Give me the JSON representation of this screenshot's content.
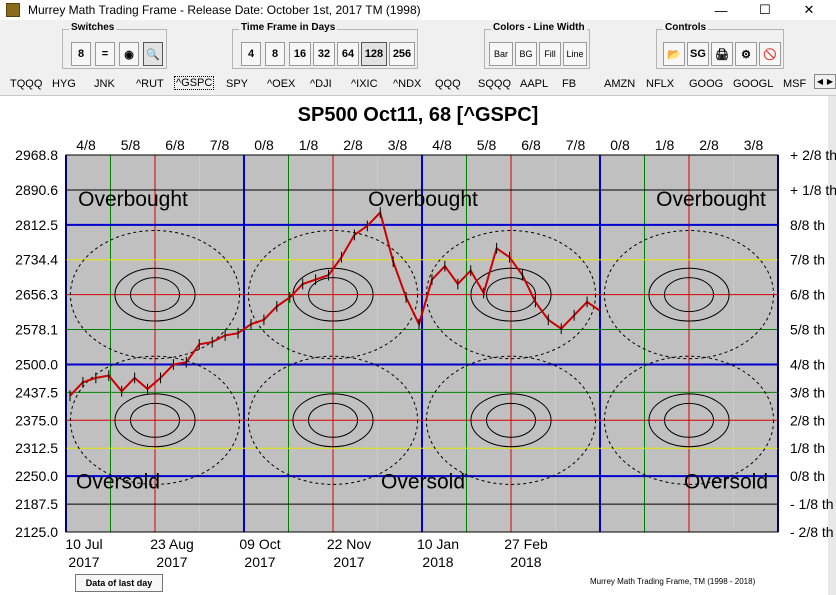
{
  "window": {
    "title": "Murrey Math Trading Frame - Release Date: October 1st, 2017    TM (1998)",
    "controls": {
      "minimize": "—",
      "maximize": "☐",
      "close": "✕"
    }
  },
  "groups": {
    "switches": {
      "label": "Switches",
      "buttons": [
        "8",
        "=",
        "◉",
        "🔍"
      ]
    },
    "timeframe": {
      "label": "Time Frame in Days",
      "buttons": [
        "4",
        "8",
        "16",
        "32",
        "64",
        "128",
        "256"
      ],
      "selected": "128"
    },
    "colors": {
      "label": "Colors - Line Width",
      "buttons": [
        "Bar",
        "BG",
        "Fill",
        "Line"
      ]
    },
    "controls": {
      "label": "Controls",
      "buttons": [
        "📂",
        "SG",
        "🖨",
        "⚙",
        "🚫"
      ]
    }
  },
  "tabs": [
    "TQQQ",
    "HYG",
    "JNK",
    "^RUT",
    "^GSPC",
    "SPY",
    "^OEX",
    "^DJI",
    "^IXIC",
    "^NDX",
    "QQQ",
    "SQQQ",
    "AAPL",
    "FB",
    "AMZN",
    "NFLX",
    "GOOG",
    "GOOGL",
    "MSF"
  ],
  "selected_tab": "^GSPC",
  "colors": {
    "plot_bg": "#c0c0c0",
    "blue": "#0000cc",
    "red": "#d60000",
    "green": "#008000",
    "yellow": "#e6e600",
    "black": "#000000",
    "candle": "#cc0000"
  },
  "chart_data": {
    "type": "line",
    "title": "SP500 Oct11, 68 [^GSPC]",
    "top_time_labels": [
      "4/8",
      "5/8",
      "6/8",
      "7/8",
      "0/8",
      "1/8",
      "2/8",
      "3/8",
      "4/8",
      "5/8",
      "6/8",
      "7/8",
      "0/8",
      "1/8",
      "2/8",
      "3/8"
    ],
    "y_levels": [
      "2968.8",
      "2890.6",
      "2812.5",
      "2734.4",
      "2656.3",
      "2578.1",
      "2500.0",
      "2437.5",
      "2375.0",
      "2312.5",
      "2250.0",
      "2187.5",
      "2125.0"
    ],
    "y_level_values": [
      2968.8,
      2890.6,
      2812.5,
      2734.4,
      2656.3,
      2578.1,
      2500.0,
      2437.5,
      2375.0,
      2312.5,
      2250.0,
      2187.5,
      2125.0
    ],
    "right_labels": [
      "+ 2/8 th",
      "+ 1/8 th",
      "8/8 th",
      "7/8 th",
      "6/8 th",
      "5/8 th",
      "4/8 th",
      "3/8 th",
      "2/8 th",
      "1/8 th",
      "0/8 th",
      "- 1/8 th",
      "- 2/8 th"
    ],
    "x_labels": [
      {
        "date": "10 Jul",
        "year": "2017"
      },
      {
        "date": "23 Aug",
        "year": "2017"
      },
      {
        "date": "09 Oct",
        "year": "2017"
      },
      {
        "date": "22 Nov",
        "year": "2017"
      },
      {
        "date": "10 Jan",
        "year": "2018"
      },
      {
        "date": "27 Feb",
        "year": "2018"
      }
    ],
    "annotations": {
      "overbought": "Overbought",
      "oversold": "Oversold"
    },
    "ylim": [
      2125.0,
      2968.8
    ],
    "series": [
      {
        "x": [
          0,
          5,
          10,
          15,
          20,
          25,
          30,
          35,
          40,
          45,
          50,
          55,
          60,
          65,
          70,
          75,
          80,
          85,
          90,
          95,
          100,
          105,
          110,
          115,
          120,
          125,
          130,
          135,
          140,
          145,
          150,
          155,
          160,
          165,
          170,
          175,
          180,
          185,
          190,
          195,
          200,
          205
        ],
        "y": [
          2430,
          2460,
          2470,
          2475,
          2440,
          2470,
          2445,
          2470,
          2500,
          2505,
          2545,
          2550,
          2565,
          2570,
          2590,
          2600,
          2630,
          2650,
          2680,
          2690,
          2700,
          2740,
          2790,
          2810,
          2840,
          2730,
          2650,
          2590,
          2690,
          2720,
          2680,
          2710,
          2660,
          2760,
          2740,
          2700,
          2640,
          2600,
          2580,
          2610,
          2640,
          2620
        ]
      }
    ]
  },
  "footer": {
    "button": "Data of last day",
    "credit": "Murrey Math Trading Frame, TM (1998 - 2018)"
  }
}
